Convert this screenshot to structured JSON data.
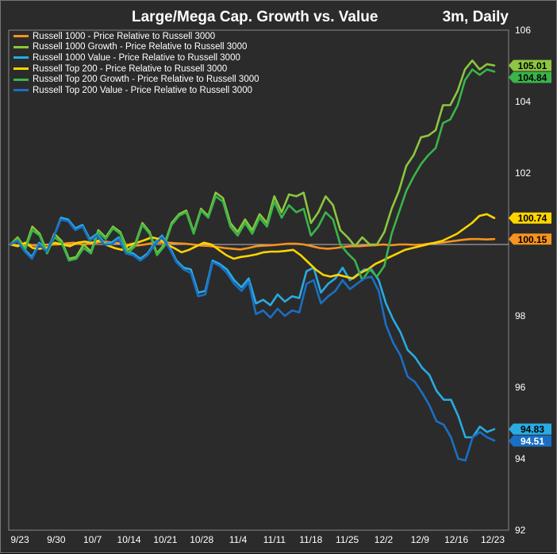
{
  "chart_data": {
    "type": "line",
    "title": "Large/Mega Cap. Growth vs. Value",
    "period_label": "3m, Daily",
    "x_tick_labels": [
      "9/23",
      "9/30",
      "10/7",
      "10/14",
      "10/21",
      "10/28",
      "11/4",
      "11/11",
      "11/18",
      "11/25",
      "12/2",
      "12/9",
      "12/16",
      "12/23"
    ],
    "y_tick_labels": [
      "106",
      "104",
      "102",
      "98",
      "96",
      "94",
      "92"
    ],
    "ylim": [
      92,
      106
    ],
    "reference_line": 100,
    "grid": false,
    "legend_position": "top-left",
    "series": [
      {
        "name": "Russell 1000 - Price Relative to Russell 3000",
        "color": "#f7931e",
        "end_label": "100.15",
        "values": [
          100.0,
          99.98,
          100.02,
          99.97,
          99.99,
          100.0,
          100.0,
          100.03,
          100.05,
          100.0,
          100.02,
          100.06,
          100.08,
          100.05,
          100.03,
          99.98,
          99.97,
          100.0,
          100.04,
          100.06,
          100.05,
          100.03,
          100.02,
          100.0,
          99.97,
          99.96,
          99.93,
          99.9,
          99.88,
          99.86,
          99.9,
          99.95,
          99.97,
          99.98,
          100.0,
          100.02,
          100.02,
          100.0,
          99.95,
          99.9,
          99.88,
          99.9,
          99.93,
          99.95,
          99.95,
          99.97,
          99.98,
          100.0,
          99.98,
          100.0,
          100.0,
          99.99,
          100.0,
          100.03,
          100.05,
          100.07,
          100.1,
          100.13,
          100.15,
          100.15,
          100.14,
          100.15
        ]
      },
      {
        "name": "Russell 1000 Growth - Price Relative to Russell 3000",
        "color": "#8dc63f",
        "end_label": "105.01",
        "values": [
          100.0,
          100.2,
          99.9,
          100.5,
          100.3,
          99.8,
          100.3,
          100.1,
          99.6,
          99.65,
          100.0,
          99.8,
          100.4,
          100.2,
          100.5,
          100.35,
          99.85,
          100.0,
          100.6,
          100.35,
          99.75,
          100.0,
          100.6,
          100.85,
          100.95,
          100.35,
          101.0,
          100.8,
          101.45,
          101.3,
          100.6,
          100.35,
          100.7,
          100.4,
          100.85,
          100.6,
          101.35,
          100.9,
          101.4,
          101.35,
          101.45,
          100.6,
          100.9,
          101.35,
          101.1,
          100.4,
          100.2,
          99.95,
          100.2,
          100.0,
          100.0,
          100.35,
          101.0,
          101.5,
          102.2,
          102.5,
          103.0,
          103.05,
          103.2,
          103.9,
          103.9,
          104.3,
          104.9,
          105.15,
          104.9,
          105.05,
          105.01
        ]
      },
      {
        "name": "Russell 1000 Value - Price Relative to Russell 3000",
        "color": "#29abe2",
        "end_label": "94.83",
        "values": [
          100.0,
          100.1,
          99.85,
          99.65,
          100.05,
          99.85,
          100.2,
          100.75,
          100.7,
          100.45,
          100.55,
          100.15,
          100.3,
          100.05,
          100.05,
          100.2,
          99.8,
          99.75,
          99.6,
          99.75,
          100.05,
          100.25,
          99.95,
          99.55,
          99.35,
          99.3,
          98.65,
          98.7,
          99.55,
          99.45,
          99.3,
          99.0,
          98.8,
          99.05,
          98.35,
          98.45,
          98.3,
          98.6,
          98.4,
          98.55,
          98.5,
          99.25,
          99.35,
          98.65,
          98.9,
          99.05,
          99.35,
          99.0,
          99.15,
          99.3,
          99.3,
          99.0,
          98.35,
          97.9,
          97.55,
          97.05,
          96.85,
          96.55,
          96.35,
          95.9,
          95.65,
          95.65,
          95.2,
          94.6,
          94.6,
          94.9,
          94.75,
          94.83
        ]
      },
      {
        "name": "Russell Top 200 - Price Relative to Russell 3000",
        "color": "#ffd400",
        "end_label": "100.74",
        "values": [
          100.0,
          99.95,
          100.05,
          99.9,
          99.88,
          99.92,
          100.05,
          100.0,
          99.95,
          100.05,
          100.08,
          100.05,
          100.12,
          99.98,
          99.9,
          99.85,
          100.0,
          100.05,
          100.12,
          100.2,
          100.15,
          100.0,
          99.9,
          99.78,
          99.85,
          99.95,
          100.05,
          100.0,
          99.85,
          99.7,
          99.6,
          99.65,
          99.68,
          99.72,
          99.78,
          99.8,
          99.8,
          99.82,
          99.85,
          99.7,
          99.5,
          99.3,
          99.15,
          99.1,
          99.15,
          99.1,
          99.05,
          99.2,
          99.3,
          99.45,
          99.55,
          99.65,
          99.75,
          99.85,
          99.9,
          99.95,
          100.0,
          100.05,
          100.1,
          100.2,
          100.3,
          100.45,
          100.6,
          100.8,
          100.85,
          100.74
        ]
      },
      {
        "name": "Russell Top 200 Growth - Price Relative to Russell 3000",
        "color": "#39b54a",
        "end_label": "104.84",
        "values": [
          100.0,
          100.15,
          99.85,
          100.4,
          100.25,
          99.75,
          100.2,
          100.05,
          99.55,
          99.6,
          99.9,
          99.75,
          100.35,
          100.15,
          100.45,
          100.3,
          99.75,
          99.95,
          100.55,
          100.3,
          99.7,
          99.95,
          100.55,
          100.8,
          100.9,
          100.3,
          100.95,
          100.75,
          101.35,
          101.2,
          100.5,
          100.25,
          100.6,
          100.3,
          100.75,
          100.5,
          101.2,
          100.75,
          101.1,
          100.9,
          101.0,
          100.25,
          100.5,
          100.9,
          100.7,
          100.0,
          99.75,
          99.55,
          99.0,
          99.3,
          99.1,
          99.4,
          100.3,
          100.9,
          101.5,
          101.9,
          102.25,
          102.5,
          102.7,
          103.4,
          103.5,
          103.9,
          104.6,
          104.9,
          104.75,
          104.9,
          104.84
        ]
      },
      {
        "name": "Russell Top 200 Value - Price Relative to Russell 3000",
        "color": "#1a6fc4",
        "end_label": "94.51",
        "values": [
          100.0,
          100.1,
          99.8,
          99.6,
          100.0,
          99.8,
          100.2,
          100.7,
          100.65,
          100.4,
          100.5,
          100.1,
          100.25,
          100.0,
          100.0,
          100.15,
          99.75,
          99.7,
          99.55,
          99.7,
          100.0,
          100.2,
          99.9,
          99.5,
          99.3,
          99.2,
          98.55,
          98.6,
          99.5,
          99.4,
          99.2,
          98.9,
          98.7,
          98.95,
          98.05,
          98.15,
          97.95,
          98.2,
          98.0,
          98.15,
          98.1,
          98.9,
          99.0,
          98.35,
          98.55,
          98.7,
          99.0,
          98.75,
          98.9,
          99.05,
          99.1,
          98.7,
          97.75,
          97.25,
          96.9,
          96.3,
          96.15,
          95.85,
          95.5,
          95.05,
          94.95,
          94.6,
          94.0,
          93.95,
          94.6,
          94.75,
          94.6,
          94.51
        ]
      }
    ]
  }
}
